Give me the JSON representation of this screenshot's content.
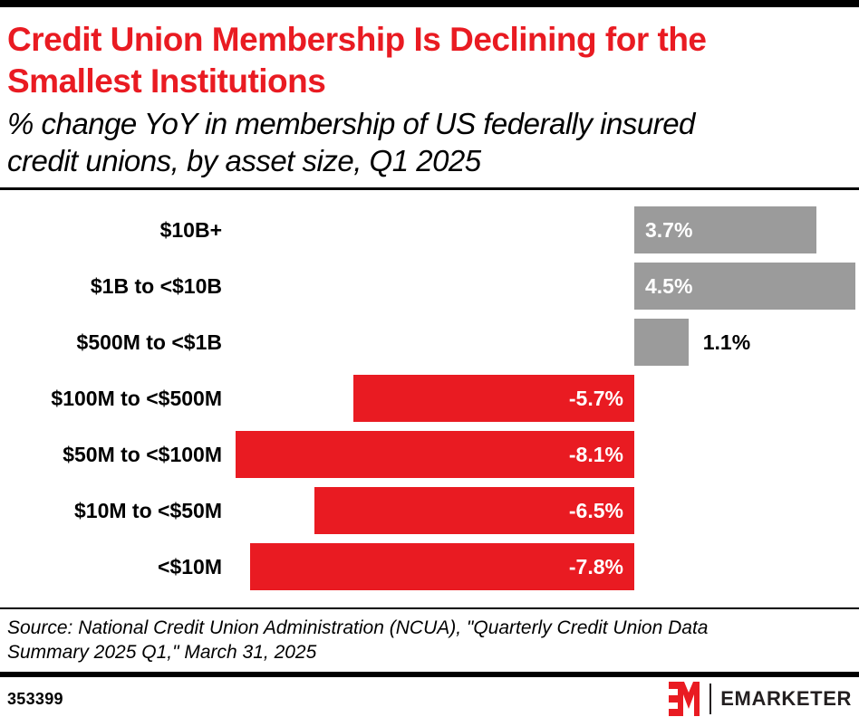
{
  "header": {
    "title_line1": "Credit Union Membership Is Declining for the",
    "title_line2": "Smallest Institutions",
    "subtitle_line1": "% change YoY in membership of US federally insured",
    "subtitle_line2": "credit unions, by asset size, Q1 2025"
  },
  "chart_data": {
    "type": "bar",
    "orientation": "horizontal",
    "title": "Credit Union Membership Is Declining for the Smallest Institutions",
    "subtitle": "% change YoY in membership of US federally insured credit unions, by asset size, Q1 2025",
    "categories": [
      "$10B+",
      "$1B to <$10B",
      "$500M to <$1B",
      "$100M to <$500M",
      "$50M to <$100M",
      "$10M to <$50M",
      "<$10M"
    ],
    "values": [
      3.7,
      4.5,
      1.1,
      -5.7,
      -8.1,
      -6.5,
      -7.8
    ],
    "value_labels": [
      "3.7%",
      "4.5%",
      "1.1%",
      "-5.7%",
      "-8.1%",
      "-6.5%",
      "-7.8%"
    ],
    "positive_color": "#9B9B9B",
    "negative_color": "#E91B22",
    "value_label_inside_color": "#FFFFFF",
    "value_label_outside_color": "#000000",
    "xlim": [
      -8.4,
      4.6
    ],
    "grid": false,
    "axis_labels_shown": false
  },
  "source": {
    "line1": "Source: National Credit Union Administration (NCUA), \"Quarterly Credit Union Data",
    "line2": "Summary 2025 Q1,\" March 31, 2025"
  },
  "footer": {
    "chart_id": "353399",
    "brand": "EMARKETER"
  },
  "colors": {
    "accent_red": "#E91B22",
    "bar_gray": "#9B9B9B",
    "rule_black": "#000000",
    "logo_dark": "#231F20"
  }
}
